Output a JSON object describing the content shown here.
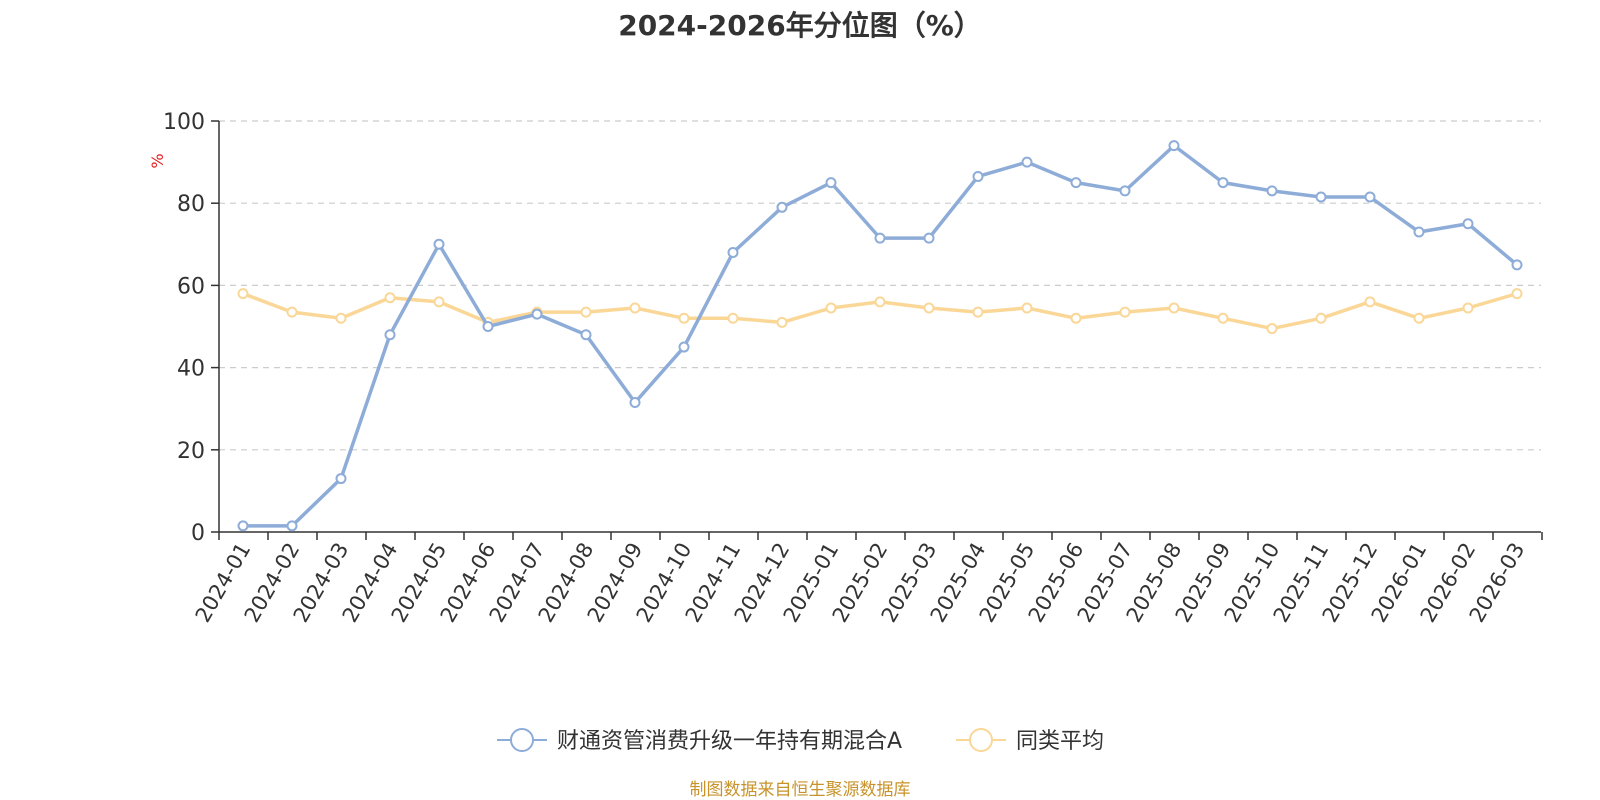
{
  "chart_data": {
    "type": "line",
    "title": "2024-2026年分位图（%）",
    "ylabel": "%",
    "ylim": [
      0,
      100
    ],
    "yticks": [
      0,
      20,
      40,
      60,
      80,
      100
    ],
    "grid": true,
    "legend_position": "bottom",
    "categories": [
      "2024-01",
      "2024-02",
      "2024-03",
      "2024-04",
      "2024-05",
      "2024-06",
      "2024-07",
      "2024-08",
      "2024-09",
      "2024-10",
      "2024-11",
      "2024-12",
      "2025-01",
      "2025-02",
      "2025-03",
      "2025-04",
      "2025-05",
      "2025-06",
      "2025-07",
      "2025-08",
      "2025-09",
      "2025-10",
      "2025-11",
      "2025-12",
      "2026-01",
      "2026-02",
      "2026-03"
    ],
    "series": [
      {
        "name": "财通资管消费升级一年持有期混合A",
        "color": "#8eacd8",
        "values": [
          1.5,
          1.5,
          13,
          48,
          70,
          50,
          53,
          48,
          31.5,
          45,
          68,
          79,
          85,
          71.5,
          71.5,
          86.5,
          90,
          85,
          83,
          94,
          85,
          83,
          81.5,
          81.5,
          73,
          75,
          65
        ]
      },
      {
        "name": "同类平均",
        "color": "#fad797",
        "values": [
          58,
          53.5,
          52,
          57,
          56,
          51,
          53.5,
          53.5,
          54.5,
          52,
          52,
          51,
          54.5,
          56,
          54.5,
          53.5,
          54.5,
          52,
          53.5,
          54.5,
          52,
          49.5,
          52,
          56,
          52,
          54.5,
          58
        ]
      }
    ]
  },
  "source": "制图数据来自恒生聚源数据库"
}
